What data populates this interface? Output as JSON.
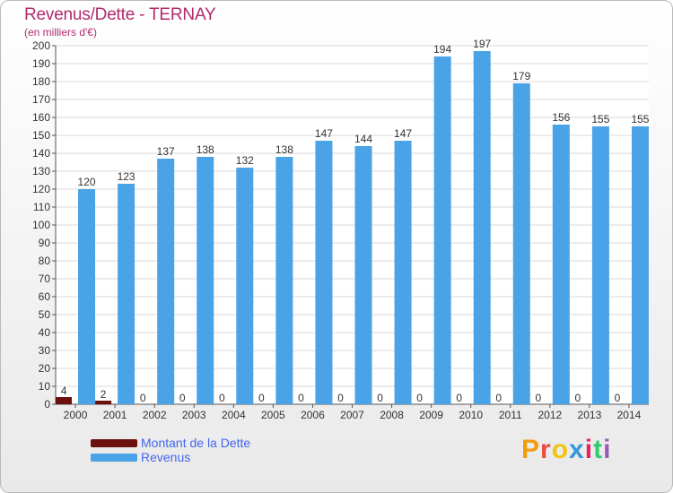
{
  "title": "Revenus/Dette - TERNAY",
  "subtitle": "(en milliers d'€)",
  "brand": {
    "letters": [
      "P",
      "r",
      "o",
      "x",
      "i",
      "t",
      "i"
    ],
    "colors": [
      "#f39c12",
      "#e74c3c",
      "#f1c40f",
      "#3498db",
      "#e91e63",
      "#2ecc71",
      "#9b59b6"
    ]
  },
  "chart_data": {
    "type": "bar",
    "categories": [
      "2000",
      "2001",
      "2002",
      "2003",
      "2004",
      "2005",
      "2006",
      "2007",
      "2008",
      "2009",
      "2010",
      "2011",
      "2012",
      "2013",
      "2014"
    ],
    "series": [
      {
        "name": "Montant de la Dette",
        "color": "#6b0f0f",
        "values": [
          4,
          2,
          0,
          0,
          0,
          0,
          0,
          0,
          0,
          0,
          0,
          0,
          0,
          0,
          0
        ]
      },
      {
        "name": "Revenus",
        "color": "#4aa3e6",
        "values": [
          120,
          123,
          137,
          138,
          132,
          138,
          147,
          144,
          147,
          194,
          197,
          179,
          156,
          155,
          155
        ]
      }
    ],
    "ylim": [
      0,
      200
    ],
    "yticks": [
      0,
      10,
      20,
      30,
      40,
      50,
      60,
      70,
      80,
      90,
      100,
      110,
      120,
      130,
      140,
      150,
      160,
      170,
      180,
      190,
      200
    ],
    "grid": true,
    "legend": "bottom-left"
  }
}
